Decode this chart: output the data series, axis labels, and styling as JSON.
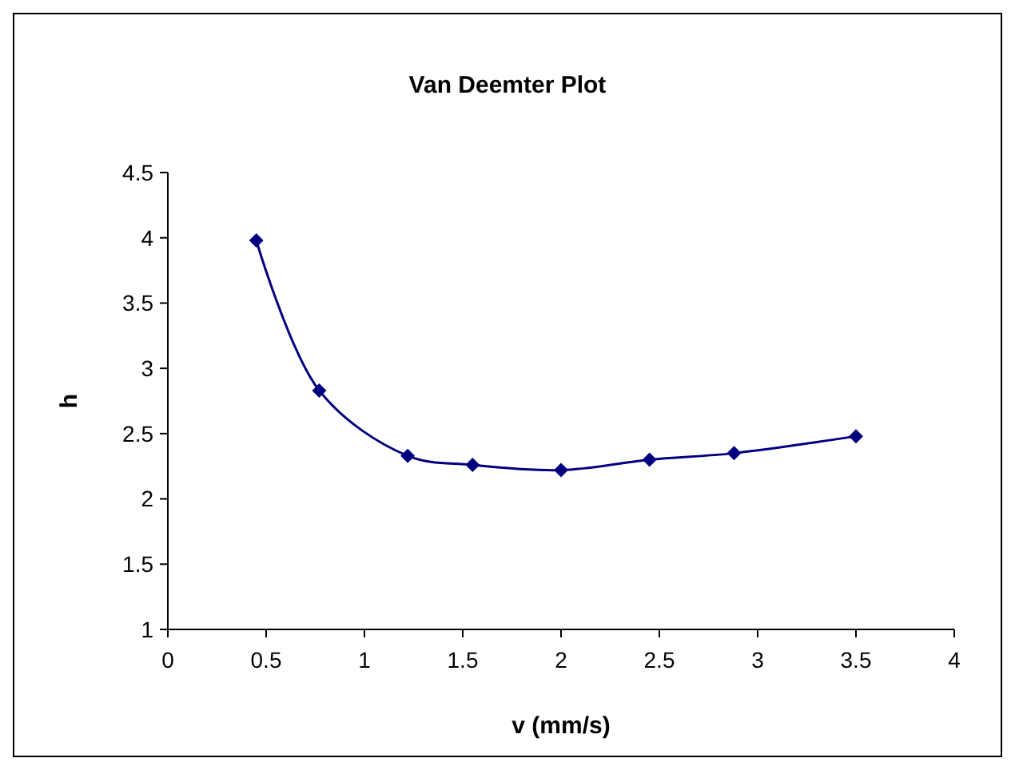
{
  "chart_data": {
    "type": "line",
    "title": "Van Deemter Plot",
    "xlabel": "v (mm/s)",
    "ylabel": "h",
    "x": [
      0.45,
      0.77,
      1.22,
      1.55,
      2.0,
      2.45,
      2.88,
      3.5
    ],
    "series": [
      {
        "color": "#000080",
        "values": [
          3.98,
          2.83,
          2.33,
          2.26,
          2.22,
          2.3,
          2.35,
          2.48
        ]
      }
    ],
    "xlim": [
      0,
      4
    ],
    "xticks": [
      0,
      0.5,
      1,
      1.5,
      2,
      2.5,
      3,
      3.5,
      4
    ],
    "ylim": [
      1,
      4.5
    ],
    "yticks": [
      1,
      1.5,
      2,
      2.5,
      3,
      3.5,
      4,
      4.5
    ],
    "grid": false,
    "marker": "diamond",
    "line_style": "solid"
  }
}
